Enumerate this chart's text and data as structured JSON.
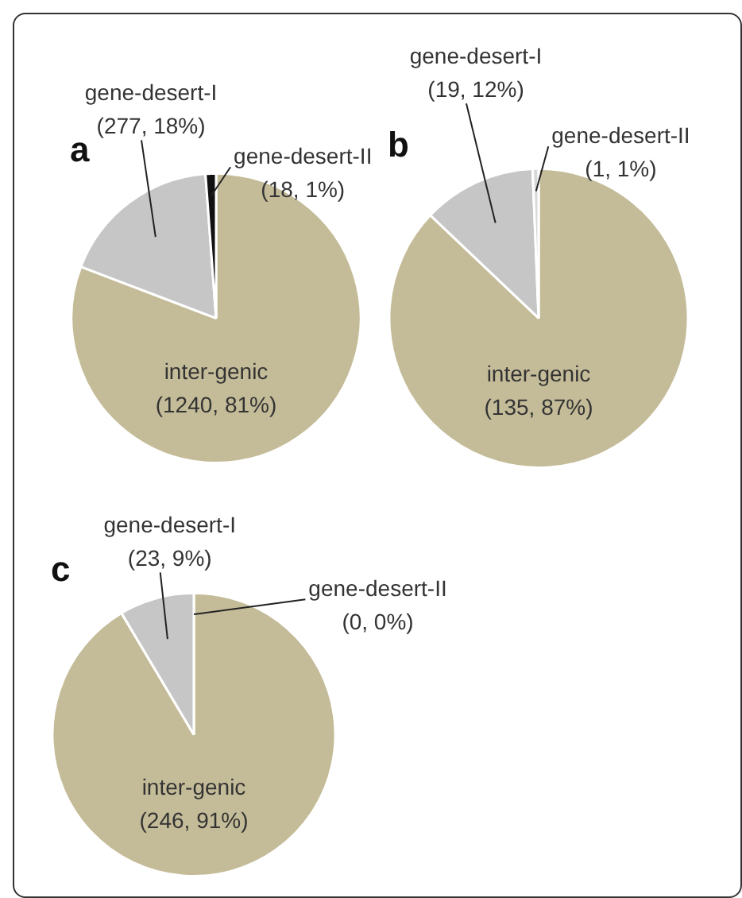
{
  "chart_data": [
    {
      "type": "pie",
      "title": "a",
      "categories": [
        "inter-genic",
        "gene-desert-I",
        "gene-desert-II"
      ],
      "values": [
        1240,
        277,
        18
      ],
      "colors": [
        "#c4bc98",
        "#c6c6c6",
        "#111111"
      ],
      "value_labels": [
        "(1240, 81%)",
        "(277, 18%)",
        "(18, 1%)"
      ]
    },
    {
      "type": "pie",
      "title": "b",
      "categories": [
        "inter-genic",
        "gene-desert-I",
        "gene-desert-II"
      ],
      "values": [
        135,
        19,
        1
      ],
      "colors": [
        "#c4bc98",
        "#c6c6c6",
        "#d8d8d8"
      ],
      "value_labels": [
        "(135, 87%)",
        "(19, 12%)",
        "(1, 1%)"
      ]
    },
    {
      "type": "pie",
      "title": "c",
      "categories": [
        "inter-genic",
        "gene-desert-I",
        "gene-desert-II"
      ],
      "values": [
        246,
        23,
        0
      ],
      "colors": [
        "#c4bc98",
        "#c6c6c6",
        "#d8d8d8"
      ],
      "value_labels": [
        "(246, 91%)",
        "(23, 9%)",
        "(0, 0%)"
      ]
    }
  ]
}
